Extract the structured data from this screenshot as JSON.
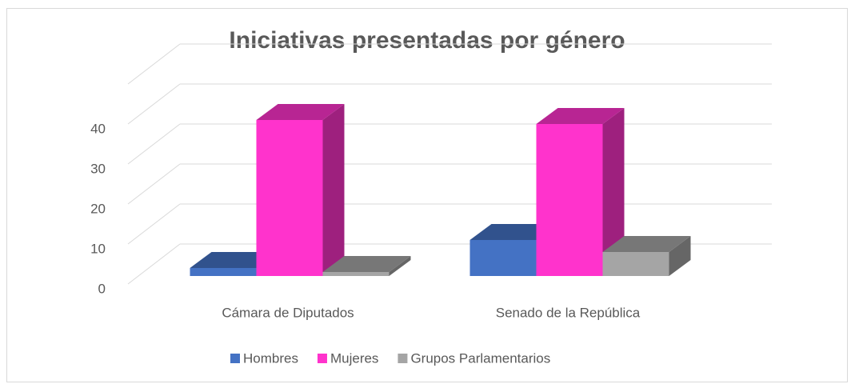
{
  "chart_data": {
    "type": "bar3d",
    "title": "Iniciativas presentadas por género",
    "categories": [
      "Cámara de Diputados",
      "Senado de la República"
    ],
    "series": [
      {
        "name": "Hombres",
        "color": "#4472c4",
        "values": [
          2,
          9
        ]
      },
      {
        "name": "Mujeres",
        "color": "#ff33cc",
        "values": [
          39,
          38
        ]
      },
      {
        "name": "Grupos Parlamentarios",
        "color": "#a5a5a5",
        "values": [
          1,
          6
        ]
      }
    ],
    "ylim": [
      0,
      50
    ],
    "yticks": [
      0,
      10,
      20,
      30,
      40
    ],
    "grid": true,
    "legend": "bottom"
  }
}
